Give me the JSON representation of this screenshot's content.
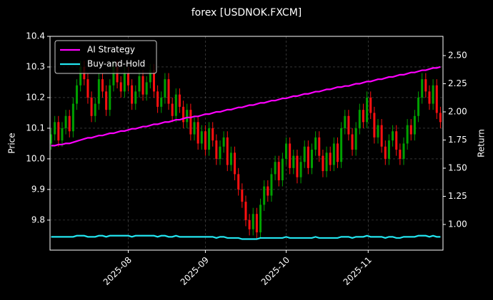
{
  "chart_data": {
    "type": "candlestick",
    "title": "forex [USDNOK.FXCM]",
    "ylabel": "Price",
    "y2label": "Return",
    "xlim": [
      -0.3,
      106.7
    ],
    "xticks": [
      {
        "value": 21,
        "label": "2025-08"
      },
      {
        "value": 42,
        "label": "2025-09"
      },
      {
        "value": 64,
        "label": "2025-10"
      },
      {
        "value": 86.33,
        "label": "2025-11"
      }
    ],
    "ylim": [
      9.702,
      10.4
    ],
    "yticks": [
      9.8,
      9.9,
      {
        "value": 10,
        "label": "10.0"
      },
      10.1,
      10.2,
      10.3,
      10.4
    ],
    "y2lim": [
      0.772,
      2.671
    ],
    "y2ticks": [
      {
        "value": 1,
        "label": "1.00"
      },
      {
        "value": 1.25,
        "label": "1.25"
      },
      {
        "value": 1.5,
        "label": "1.50"
      },
      {
        "value": 1.75,
        "label": "1.75"
      },
      {
        "value": 2,
        "label": "2.00"
      },
      {
        "value": 2.25,
        "label": "2.25"
      },
      {
        "value": 2.5,
        "label": "2.50"
      }
    ],
    "grid": true,
    "legend": "upper left",
    "up_color": "#00a000",
    "down_color": "#ff1010",
    "open": [
      10.05,
      10.08,
      10.12,
      10.06,
      10.1,
      10.14,
      10.09,
      10.18,
      10.24,
      10.3,
      10.26,
      10.2,
      10.14,
      10.18,
      10.26,
      10.22,
      10.16,
      10.24,
      10.3,
      10.25,
      10.22,
      10.28,
      10.24,
      10.18,
      10.22,
      10.27,
      10.21,
      10.25,
      10.29,
      10.22,
      10.17,
      10.2,
      10.26,
      10.18,
      10.14,
      10.21,
      10.17,
      10.12,
      10.16,
      10.08,
      10.12,
      10.05,
      10.09,
      10.03,
      10.1,
      10.06,
      10.0,
      10.04,
      10.07,
      9.98,
      10.02,
      9.95,
      9.9,
      9.86,
      9.8,
      9.77,
      9.82,
      9.76,
      9.85,
      9.91,
      9.88,
      9.95,
      9.99,
      9.93,
      10.0,
      10.05,
      9.97,
      10.01,
      9.94,
      9.99,
      10.04,
      9.97,
      10.03,
      10.07,
      10.01,
      9.96,
      10.02,
      9.98,
      10.05,
      9.99,
      10.1,
      10.14,
      10.08,
      10.03,
      10.1,
      10.16,
      10.12,
      10.2,
      10.15,
      10.07,
      10.11,
      10.04,
      10.0,
      10.06,
      10.09,
      10.03,
      10.0,
      10.05,
      10.11,
      10.08,
      10.14,
      10.2,
      10.26,
      10.22,
      10.18,
      10.24,
      10.15
    ],
    "high": [
      10.1,
      10.14,
      10.14,
      10.12,
      10.16,
      10.16,
      10.2,
      10.26,
      10.32,
      10.32,
      10.28,
      10.22,
      10.2,
      10.28,
      10.28,
      10.24,
      10.26,
      10.32,
      10.32,
      10.27,
      10.3,
      10.3,
      10.26,
      10.24,
      10.29,
      10.29,
      10.27,
      10.31,
      10.31,
      10.24,
      10.22,
      10.28,
      10.28,
      10.2,
      10.23,
      10.23,
      10.19,
      10.18,
      10.18,
      10.14,
      10.14,
      10.11,
      10.11,
      10.12,
      10.12,
      10.08,
      10.06,
      10.09,
      10.09,
      10.04,
      10.04,
      9.97,
      9.92,
      9.88,
      9.82,
      9.84,
      9.84,
      9.87,
      9.93,
      9.93,
      9.97,
      10.01,
      10.01,
      10.02,
      10.07,
      10.07,
      10.03,
      10.03,
      10.01,
      10.06,
      10.06,
      10.05,
      10.09,
      10.09,
      10.03,
      10.04,
      10.04,
      10.07,
      10.07,
      10.12,
      10.16,
      10.16,
      10.1,
      10.12,
      10.18,
      10.18,
      10.22,
      10.22,
      10.17,
      10.13,
      10.13,
      10.06,
      10.08,
      10.11,
      10.11,
      10.05,
      10.07,
      10.13,
      10.13,
      10.16,
      10.22,
      10.28,
      10.28,
      10.24,
      10.26,
      10.26,
      10.17
    ],
    "low": [
      10.03,
      10.06,
      10.04,
      10.04,
      10.08,
      10.07,
      10.07,
      10.16,
      10.22,
      10.24,
      10.18,
      10.12,
      10.12,
      10.16,
      10.2,
      10.14,
      10.14,
      10.22,
      10.23,
      10.2,
      10.2,
      10.22,
      10.16,
      10.16,
      10.2,
      10.19,
      10.19,
      10.23,
      10.2,
      10.15,
      10.15,
      10.18,
      10.16,
      10.12,
      10.12,
      10.15,
      10.1,
      10.1,
      10.06,
      10.06,
      10.03,
      10.03,
      10.01,
      10.01,
      10.04,
      9.98,
      9.98,
      10.02,
      9.96,
      9.96,
      9.93,
      9.88,
      9.84,
      9.78,
      9.75,
      9.75,
      9.74,
      9.74,
      9.83,
      9.86,
      9.86,
      9.93,
      9.91,
      9.91,
      9.98,
      9.95,
      9.95,
      9.92,
      9.92,
      9.97,
      9.95,
      9.95,
      10.01,
      9.99,
      9.94,
      9.94,
      9.96,
      9.96,
      9.97,
      9.97,
      10.08,
      10.06,
      10.01,
      10.01,
      10.08,
      10.1,
      10.1,
      10.13,
      10.05,
      10.05,
      10.02,
      9.98,
      9.98,
      10.04,
      10.01,
      9.98,
      9.98,
      10.03,
      10.06,
      10.06,
      10.12,
      10.18,
      10.2,
      10.16,
      10.16,
      10.13,
      10.1
    ],
    "close": [
      10.08,
      10.12,
      10.06,
      10.1,
      10.14,
      10.09,
      10.18,
      10.24,
      10.3,
      10.26,
      10.2,
      10.14,
      10.18,
      10.26,
      10.22,
      10.16,
      10.24,
      10.3,
      10.25,
      10.22,
      10.28,
      10.24,
      10.18,
      10.22,
      10.27,
      10.21,
      10.25,
      10.29,
      10.22,
      10.17,
      10.2,
      10.26,
      10.18,
      10.14,
      10.21,
      10.17,
      10.12,
      10.16,
      10.08,
      10.12,
      10.05,
      10.09,
      10.03,
      10.1,
      10.06,
      10.0,
      10.04,
      10.07,
      9.98,
      10.02,
      9.95,
      9.9,
      9.86,
      9.8,
      9.77,
      9.82,
      9.76,
      9.85,
      9.91,
      9.88,
      9.95,
      9.99,
      9.93,
      10.0,
      10.05,
      9.97,
      10.01,
      9.94,
      9.99,
      10.04,
      9.97,
      10.03,
      10.07,
      10.01,
      9.96,
      10.02,
      9.98,
      10.05,
      9.99,
      10.1,
      10.14,
      10.08,
      10.03,
      10.1,
      10.16,
      10.12,
      10.2,
      10.15,
      10.07,
      10.11,
      10.04,
      10.0,
      10.06,
      10.09,
      10.03,
      10.0,
      10.05,
      10.11,
      10.08,
      10.14,
      10.2,
      10.26,
      10.22,
      10.18,
      10.24,
      10.15,
      10.12
    ],
    "series": [
      {
        "name": "AI Strategy",
        "color": "#ff00ff",
        "axis": "y2",
        "values": [
          1.7,
          1.7,
          1.71,
          1.71,
          1.72,
          1.72,
          1.73,
          1.74,
          1.75,
          1.76,
          1.77,
          1.77,
          1.78,
          1.79,
          1.79,
          1.8,
          1.81,
          1.81,
          1.82,
          1.83,
          1.83,
          1.84,
          1.85,
          1.85,
          1.86,
          1.87,
          1.87,
          1.88,
          1.89,
          1.89,
          1.9,
          1.91,
          1.91,
          1.92,
          1.93,
          1.93,
          1.94,
          1.95,
          1.95,
          1.96,
          1.96,
          1.97,
          1.98,
          1.98,
          1.99,
          2.0,
          2.0,
          2.01,
          2.02,
          2.02,
          2.03,
          2.04,
          2.04,
          2.05,
          2.06,
          2.06,
          2.07,
          2.08,
          2.08,
          2.09,
          2.1,
          2.1,
          2.11,
          2.12,
          2.12,
          2.13,
          2.14,
          2.14,
          2.15,
          2.16,
          2.16,
          2.17,
          2.18,
          2.18,
          2.19,
          2.2,
          2.2,
          2.21,
          2.22,
          2.22,
          2.23,
          2.23,
          2.24,
          2.25,
          2.25,
          2.26,
          2.27,
          2.27,
          2.28,
          2.29,
          2.29,
          2.3,
          2.31,
          2.31,
          2.32,
          2.33,
          2.33,
          2.34,
          2.35,
          2.35,
          2.36,
          2.37,
          2.37,
          2.38,
          2.39,
          2.39,
          2.4
        ]
      },
      {
        "name": "Buy-and-Hold",
        "color": "#22e5f0",
        "axis": "y2",
        "values": [
          0.89,
          0.89,
          0.89,
          0.89,
          0.89,
          0.89,
          0.89,
          0.9,
          0.9,
          0.9,
          0.89,
          0.89,
          0.89,
          0.9,
          0.9,
          0.89,
          0.9,
          0.9,
          0.9,
          0.9,
          0.9,
          0.9,
          0.89,
          0.9,
          0.9,
          0.9,
          0.9,
          0.9,
          0.9,
          0.89,
          0.9,
          0.9,
          0.89,
          0.89,
          0.9,
          0.89,
          0.89,
          0.89,
          0.89,
          0.89,
          0.89,
          0.89,
          0.89,
          0.89,
          0.89,
          0.88,
          0.89,
          0.89,
          0.88,
          0.88,
          0.88,
          0.88,
          0.87,
          0.87,
          0.87,
          0.87,
          0.87,
          0.88,
          0.88,
          0.88,
          0.88,
          0.88,
          0.88,
          0.88,
          0.89,
          0.88,
          0.88,
          0.88,
          0.88,
          0.88,
          0.88,
          0.88,
          0.89,
          0.88,
          0.88,
          0.88,
          0.88,
          0.88,
          0.88,
          0.89,
          0.89,
          0.89,
          0.88,
          0.89,
          0.89,
          0.89,
          0.9,
          0.89,
          0.89,
          0.89,
          0.89,
          0.88,
          0.89,
          0.89,
          0.88,
          0.88,
          0.89,
          0.89,
          0.89,
          0.89,
          0.9,
          0.9,
          0.9,
          0.89,
          0.9,
          0.89,
          0.89
        ]
      }
    ]
  }
}
